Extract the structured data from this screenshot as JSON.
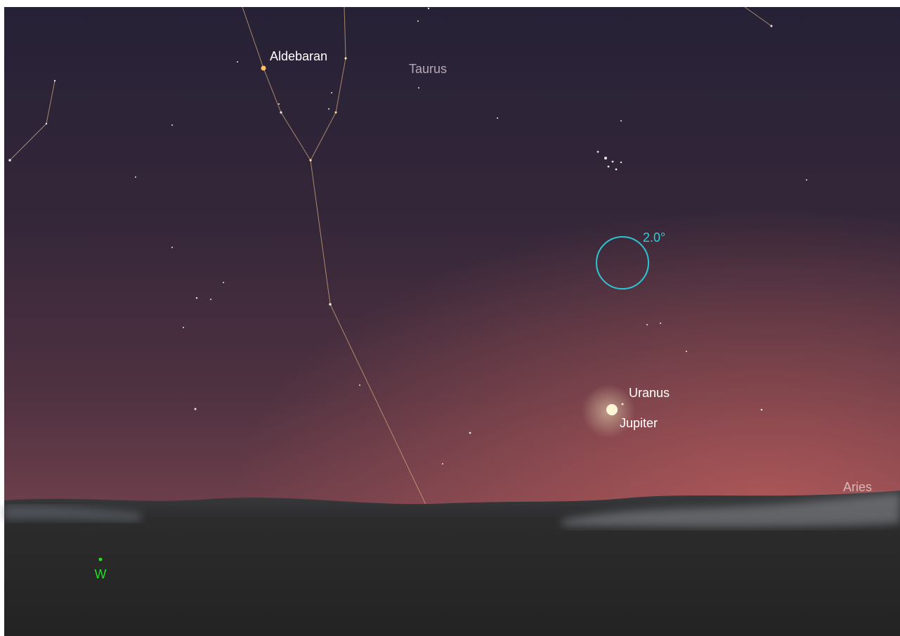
{
  "labels": {
    "aldebaran": "Aldebaran",
    "taurus": "Taurus",
    "fov_circle": "2.0°",
    "uranus": "Uranus",
    "jupiter": "Jupiter",
    "aries": "Aries",
    "west": "W"
  }
}
